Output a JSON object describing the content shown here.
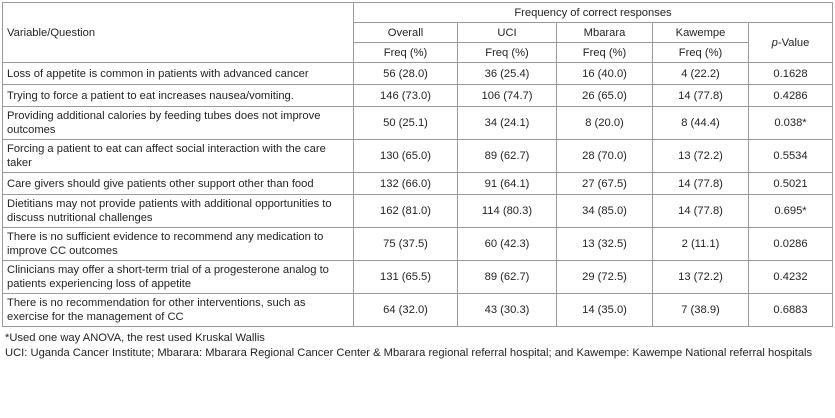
{
  "header": {
    "variable_label": "Variable/Question",
    "group_label": "Frequency of correct responses",
    "columns": [
      "Overall",
      "UCI",
      "Mbarara",
      "Kawempe"
    ],
    "sub_label": "Freq (%)",
    "pvalue_p": "p",
    "pvalue_rest": "-Value"
  },
  "rows": [
    {
      "q": "Loss of appetite is common in patients with advanced cancer",
      "overall": "56 (28.0)",
      "uci": "36 (25.4)",
      "mbarara": "16 (40.0)",
      "kawempe": "4 (22.2)",
      "p": "0.1628"
    },
    {
      "q": "Trying to force a patient to eat increases nausea/vomiting.",
      "overall": "146 (73.0)",
      "uci": "106 (74.7)",
      "mbarara": "26 (65.0)",
      "kawempe": "14 (77.8)",
      "p": "0.4286"
    },
    {
      "q": "Providing additional calories by feeding tubes does not improve outcomes",
      "overall": "50 (25.1)",
      "uci": "34 (24.1)",
      "mbarara": "8 (20.0)",
      "kawempe": "8 (44.4)",
      "p": "0.038*"
    },
    {
      "q": "Forcing a patient to eat can affect social interaction with the care taker",
      "overall": "130 (65.0)",
      "uci": "89 (62.7)",
      "mbarara": "28 (70.0)",
      "kawempe": "13 (72.2)",
      "p": "0.5534"
    },
    {
      "q": "Care givers should give patients other support other than food",
      "overall": "132 (66.0)",
      "uci": "91 (64.1)",
      "mbarara": "27 (67.5)",
      "kawempe": "14 (77.8)",
      "p": "0.5021"
    },
    {
      "q": "Dietitians may not provide patients with additional opportunities to discuss nutritional challenges",
      "overall": "162 (81.0)",
      "uci": "114 (80.3)",
      "mbarara": "34 (85.0)",
      "kawempe": "14 (77.8)",
      "p": "0.695*"
    },
    {
      "q": "There is no sufficient evidence to recommend any medication to improve CC outcomes",
      "overall": "75 (37.5)",
      "uci": "60 (42.3)",
      "mbarara": "13 (32.5)",
      "kawempe": "2 (11.1)",
      "p": "0.0286"
    },
    {
      "q": "Clinicians may offer a short-term trial of a progesterone analog to patients experiencing loss of appetite",
      "overall": "131 (65.5)",
      "uci": "89 (62.7)",
      "mbarara": "29 (72.5)",
      "kawempe": "13 (72.2)",
      "p": "0.4232"
    },
    {
      "q": "There is no recommendation for other interventions, such as exercise for the management of CC",
      "overall": "64 (32.0)",
      "uci": "43 (30.3)",
      "mbarara": "14 (35.0)",
      "kawempe": "7 (38.9)",
      "p": "0.6883"
    }
  ],
  "notes": [
    "*Used one way ANOVA, the rest used Kruskal Wallis",
    "UCI: Uganda Cancer Institute; Mbarara: Mbarara Regional Cancer Center & Mbarara regional referral hospital; and Kawempe: Kawempe National referral hospitals"
  ]
}
